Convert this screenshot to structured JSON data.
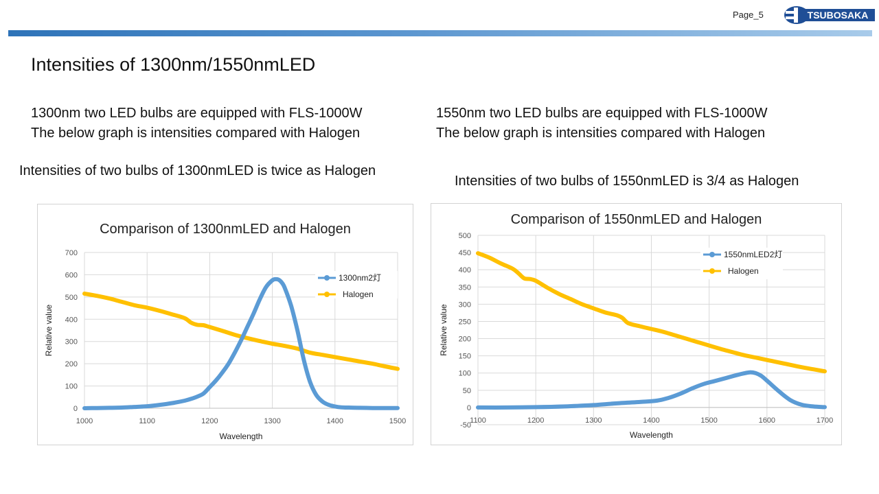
{
  "header": {
    "page_label": "Page_5",
    "logo_text": "TSUBOSAKA"
  },
  "slide": {
    "title": "Intensities of 1300nm/1550nmLED",
    "left": {
      "line1": "1300nm two LED bulbs are equipped with FLS-1000W",
      "line2": "The below graph is intensities compared with Halogen",
      "note": "Intensities of two bulbs of 1300nmLED is twice as Halogen"
    },
    "right": {
      "line1": "1550nm two LED bulbs are equipped with FLS-1000W",
      "line2": "The below graph is intensities compared with Halogen",
      "note": "Intensities of two bulbs of 1550nmLED is 3/4 as Halogen"
    }
  },
  "colors": {
    "led": "#5b9bd5",
    "halogen": "#ffc000",
    "grid": "#d9d9d9",
    "accent_bar": "#2e73b8"
  },
  "chart_data": [
    {
      "type": "line",
      "title": "Comparison of 1300nmLED and Halogen",
      "xlabel": "Wavelength",
      "ylabel": "Relative value",
      "xlim": [
        1000,
        1500
      ],
      "ylim": [
        0,
        700
      ],
      "xticks": [
        1000,
        1100,
        1200,
        1300,
        1400,
        1500
      ],
      "yticks": [
        0,
        100,
        200,
        300,
        400,
        500,
        600,
        700
      ],
      "grid": true,
      "legend": "top-right",
      "series": [
        {
          "name": "1300nm2灯",
          "color": "#5b9bd5",
          "x": [
            1000,
            1020,
            1040,
            1060,
            1080,
            1100,
            1120,
            1140,
            1160,
            1170,
            1180,
            1190,
            1200,
            1210,
            1220,
            1230,
            1240,
            1250,
            1260,
            1270,
            1280,
            1290,
            1300,
            1305,
            1310,
            1315,
            1320,
            1330,
            1340,
            1350,
            1360,
            1370,
            1380,
            1390,
            1400,
            1410,
            1420,
            1440,
            1460,
            1480,
            1500
          ],
          "y": [
            0,
            1,
            2,
            3,
            6,
            9,
            15,
            23,
            34,
            42,
            52,
            66,
            95,
            125,
            160,
            200,
            250,
            305,
            365,
            425,
            490,
            545,
            575,
            580,
            578,
            565,
            540,
            460,
            350,
            220,
            120,
            60,
            30,
            15,
            8,
            4,
            3,
            2,
            1,
            1,
            1
          ]
        },
        {
          "name": "Halogen",
          "color": "#ffc000",
          "x": [
            1000,
            1020,
            1040,
            1060,
            1080,
            1100,
            1120,
            1140,
            1160,
            1170,
            1180,
            1190,
            1200,
            1220,
            1240,
            1260,
            1280,
            1300,
            1320,
            1340,
            1360,
            1380,
            1400,
            1420,
            1440,
            1460,
            1480,
            1500
          ],
          "y": [
            515,
            505,
            493,
            478,
            463,
            452,
            438,
            422,
            405,
            385,
            375,
            373,
            365,
            348,
            330,
            315,
            302,
            290,
            280,
            268,
            250,
            240,
            230,
            220,
            210,
            200,
            188,
            177
          ]
        }
      ]
    },
    {
      "type": "line",
      "title": "Comparison of 1550nmLED and Halogen",
      "xlabel": "Wavelength",
      "ylabel": "Relative value",
      "xlim": [
        1100,
        1700
      ],
      "ylim": [
        -50,
        500
      ],
      "xticks": [
        1100,
        1200,
        1300,
        1400,
        1500,
        1600,
        1700
      ],
      "yticks": [
        -50,
        0,
        50,
        100,
        150,
        200,
        250,
        300,
        350,
        400,
        450,
        500
      ],
      "grid": true,
      "legend": "top-right",
      "series": [
        {
          "name": "1550nmLED2灯",
          "color": "#5b9bd5",
          "x": [
            1100,
            1150,
            1200,
            1250,
            1300,
            1340,
            1380,
            1410,
            1430,
            1450,
            1470,
            1490,
            1510,
            1530,
            1550,
            1560,
            1570,
            1580,
            1590,
            1600,
            1620,
            1640,
            1660,
            1680,
            1700
          ],
          "y": [
            0,
            0,
            1,
            3,
            7,
            12,
            16,
            20,
            28,
            40,
            55,
            68,
            77,
            86,
            95,
            99,
            102,
            100,
            92,
            78,
            48,
            22,
            8,
            3,
            1
          ]
        },
        {
          "name": "Halogen",
          "color": "#ffc000",
          "x": [
            1100,
            1120,
            1140,
            1160,
            1170,
            1180,
            1190,
            1200,
            1220,
            1240,
            1260,
            1280,
            1300,
            1320,
            1340,
            1350,
            1360,
            1380,
            1400,
            1420,
            1440,
            1460,
            1480,
            1500,
            1520,
            1540,
            1560,
            1580,
            1600,
            1620,
            1640,
            1660,
            1680,
            1700
          ],
          "y": [
            448,
            435,
            418,
            403,
            390,
            375,
            373,
            368,
            348,
            330,
            315,
            300,
            288,
            276,
            268,
            260,
            245,
            236,
            228,
            220,
            210,
            200,
            190,
            180,
            170,
            161,
            152,
            145,
            138,
            131,
            124,
            117,
            111,
            105
          ]
        }
      ]
    }
  ]
}
